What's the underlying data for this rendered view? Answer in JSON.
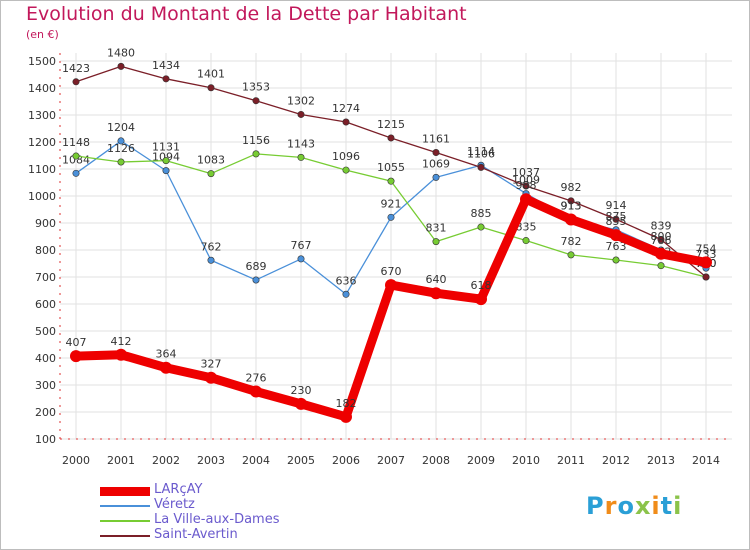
{
  "title": "Evolution du Montant de la Dette par Habitant",
  "unit": "(en €)",
  "logo": "Proxiti",
  "chart_data": {
    "type": "line",
    "x": [
      2000,
      2001,
      2002,
      2003,
      2004,
      2005,
      2006,
      2007,
      2008,
      2009,
      2010,
      2011,
      2012,
      2013,
      2014
    ],
    "ylim": [
      100,
      1500
    ],
    "yticks": [
      100,
      200,
      300,
      400,
      500,
      600,
      700,
      800,
      900,
      1000,
      1100,
      1200,
      1300,
      1400,
      1500
    ],
    "grid": true,
    "legend_position": "bottom-left",
    "series": [
      {
        "name": "LARçAY",
        "color": "#ee0000",
        "values": [
          407,
          412,
          364,
          327,
          276,
          230,
          182,
          670,
          640,
          618,
          988,
          913,
          855,
          786,
          754
        ]
      },
      {
        "name": "Véretz",
        "color": "#4a90d9",
        "values": [
          1084,
          1204,
          1094,
          762,
          689,
          767,
          636,
          921,
          1069,
          1114,
          1009,
          913,
          875,
          800,
          733
        ]
      },
      {
        "name": "La Ville-aux-Dames",
        "color": "#77cc33",
        "values": [
          1148,
          1126,
          1131,
          1083,
          1156,
          1143,
          1096,
          1055,
          831,
          885,
          835,
          782,
          763,
          742,
          700
        ]
      },
      {
        "name": "Saint-Avertin",
        "color": "#7b1f28",
        "values": [
          1423,
          1480,
          1434,
          1401,
          1353,
          1302,
          1274,
          1215,
          1161,
          1106,
          1037,
          982,
          914,
          839,
          700
        ]
      }
    ]
  }
}
